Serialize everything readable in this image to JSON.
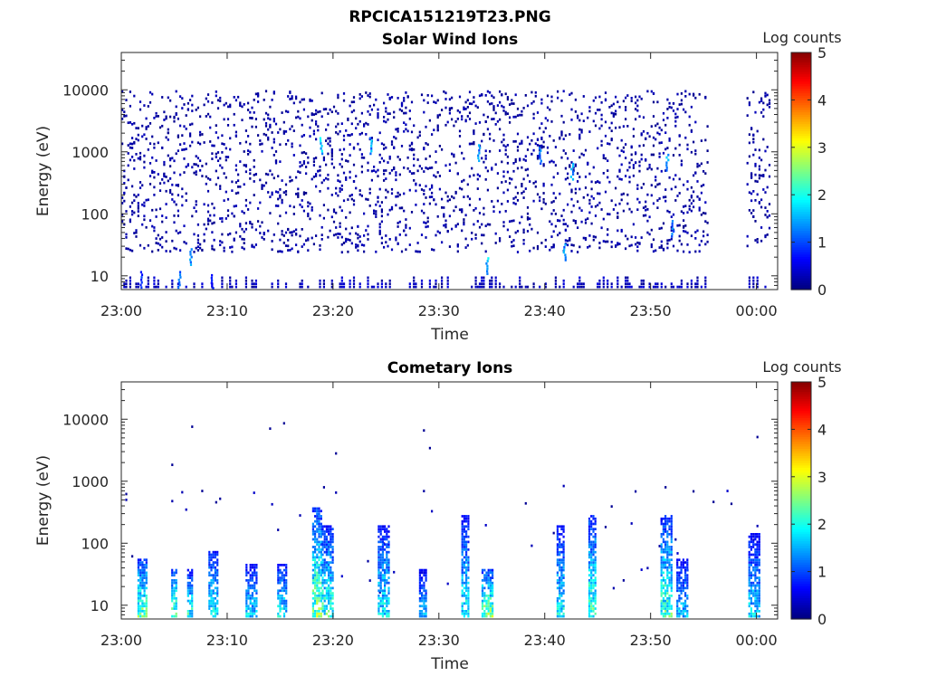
{
  "figure": {
    "filename": "RPCICA151219T23.PNG"
  },
  "chart_data": [
    {
      "type": "heatmap",
      "title": "Solar Wind Ions",
      "xlabel": "Time",
      "ylabel": "Energy (eV)",
      "x_tick_labels": [
        "23:00",
        "23:10",
        "23:20",
        "23:30",
        "23:40",
        "23:50",
        "00:00"
      ],
      "x_range_minutes": [
        0,
        62
      ],
      "y_scale": "log",
      "y_tick_labels": [
        "10",
        "100",
        "1000",
        "10000"
      ],
      "y_range_eV": [
        6,
        40000
      ],
      "colorbar": {
        "label": "Log counts",
        "range": [
          0,
          5
        ],
        "tick_labels": [
          "0",
          "1",
          "2",
          "3",
          "4",
          "5"
        ],
        "colormap": "jet"
      },
      "grid": false,
      "data_gaps_minutes": [
        [
          55.3,
          59.0
        ]
      ],
      "hotspots": [
        {
          "t": 1.8,
          "e": 9,
          "level": 1.0
        },
        {
          "t": 5.4,
          "e": 9,
          "level": 1.3
        },
        {
          "t": 6.5,
          "e": 21,
          "level": 1.6
        },
        {
          "t": 8.5,
          "e": 8,
          "level": 0.9
        },
        {
          "t": 18.8,
          "e": 1300,
          "level": 1.9
        },
        {
          "t": 23.5,
          "e": 1300,
          "level": 1.7
        },
        {
          "t": 33.7,
          "e": 1000,
          "level": 1.6
        },
        {
          "t": 34.5,
          "e": 15,
          "level": 2.0
        },
        {
          "t": 39.5,
          "e": 900,
          "level": 1.5
        },
        {
          "t": 41.8,
          "e": 25,
          "level": 1.6
        },
        {
          "t": 42.5,
          "e": 500,
          "level": 1.8
        },
        {
          "t": 51.5,
          "e": 700,
          "level": 1.8
        },
        {
          "t": 52.0,
          "e": 60,
          "level": 1.5
        }
      ]
    },
    {
      "type": "heatmap",
      "title": "Cometary Ions",
      "xlabel": "Time",
      "ylabel": "Energy (eV)",
      "x_tick_labels": [
        "23:00",
        "23:10",
        "23:20",
        "23:30",
        "23:40",
        "23:50",
        "00:00"
      ],
      "x_range_minutes": [
        0,
        62
      ],
      "y_scale": "log",
      "y_tick_labels": [
        "10",
        "100",
        "1000",
        "10000"
      ],
      "y_range_eV": [
        6,
        40000
      ],
      "colorbar": {
        "label": "Log counts",
        "range": [
          0,
          5
        ],
        "tick_labels": [
          "0",
          "1",
          "2",
          "3",
          "4",
          "5"
        ],
        "colormap": "jet"
      },
      "grid": false,
      "activity_bursts": [
        {
          "t": 2.0,
          "top_eV": 60,
          "level": 2.8
        },
        {
          "t": 5.0,
          "top_eV": 40,
          "level": 2.9
        },
        {
          "t": 6.5,
          "top_eV": 40,
          "level": 2.4
        },
        {
          "t": 8.7,
          "top_eV": 80,
          "level": 2.3
        },
        {
          "t": 12.3,
          "top_eV": 50,
          "level": 2.0
        },
        {
          "t": 15.2,
          "top_eV": 50,
          "level": 2.2
        },
        {
          "t": 18.5,
          "top_eV": 400,
          "level": 2.9
        },
        {
          "t": 19.5,
          "top_eV": 200,
          "level": 2.5
        },
        {
          "t": 24.8,
          "top_eV": 200,
          "level": 2.2
        },
        {
          "t": 28.5,
          "top_eV": 40,
          "level": 1.8
        },
        {
          "t": 32.5,
          "top_eV": 300,
          "level": 2.2
        },
        {
          "t": 34.6,
          "top_eV": 40,
          "level": 3.0
        },
        {
          "t": 41.5,
          "top_eV": 200,
          "level": 2.2
        },
        {
          "t": 44.5,
          "top_eV": 300,
          "level": 2.6
        },
        {
          "t": 51.5,
          "top_eV": 300,
          "level": 2.6
        },
        {
          "t": 53.0,
          "top_eV": 60,
          "level": 1.9
        },
        {
          "t": 59.8,
          "top_eV": 150,
          "level": 2.0
        }
      ]
    }
  ]
}
